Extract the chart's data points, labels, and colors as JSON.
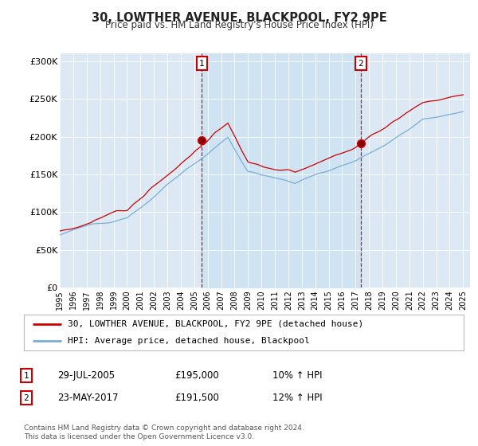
{
  "title": "30, LOWTHER AVENUE, BLACKPOOL, FY2 9PE",
  "subtitle": "Price paid vs. HM Land Registry's House Price Index (HPI)",
  "background_color": "#ffffff",
  "plot_bg_color": "#dce9f5",
  "hpi_color": "#7aaed6",
  "price_color": "#cc0000",
  "fill_color": "#c8dff0",
  "marker1": {
    "date_year": 2005.57,
    "price": 195000,
    "label": "1",
    "text": "29-JUL-2005",
    "amount": "£195,000",
    "hpi_pct": "10% ↑ HPI"
  },
  "marker2": {
    "date_year": 2017.39,
    "price": 191500,
    "label": "2",
    "text": "23-MAY-2017",
    "amount": "£191,500",
    "hpi_pct": "12% ↑ HPI"
  },
  "legend_line1": "30, LOWTHER AVENUE, BLACKPOOL, FY2 9PE (detached house)",
  "legend_line2": "HPI: Average price, detached house, Blackpool",
  "footnote": "Contains HM Land Registry data © Crown copyright and database right 2024.\nThis data is licensed under the Open Government Licence v3.0.",
  "ylim": [
    0,
    310000
  ],
  "xlim_start": 1995.0,
  "xlim_end": 2025.5,
  "yticks": [
    0,
    50000,
    100000,
    150000,
    200000,
    250000,
    300000
  ],
  "ytick_labels": [
    "£0",
    "£50K",
    "£100K",
    "£150K",
    "£200K",
    "£250K",
    "£300K"
  ],
  "xtick_years": [
    1995,
    1996,
    1997,
    1998,
    1999,
    2000,
    2001,
    2002,
    2003,
    2004,
    2005,
    2006,
    2007,
    2008,
    2009,
    2010,
    2011,
    2012,
    2013,
    2014,
    2015,
    2016,
    2017,
    2018,
    2019,
    2020,
    2021,
    2022,
    2023,
    2024,
    2025
  ]
}
